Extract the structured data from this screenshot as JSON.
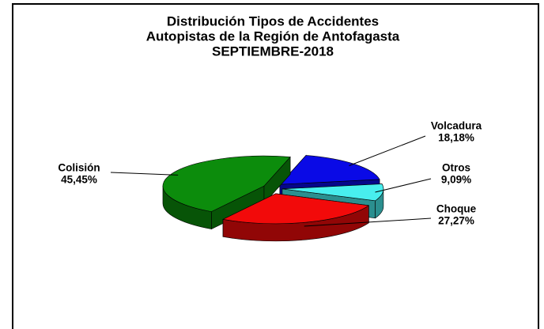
{
  "chart_data": {
    "type": "pie",
    "title_lines": [
      "Distribución Tipos de Accidentes",
      "Autopistas de la Región de Antofagasta",
      "SEPTIEMBRE-2018"
    ],
    "categories": [
      "Volcadura",
      "Otros",
      "Choque",
      "Colisión"
    ],
    "values": [
      18.18,
      9.09,
      27.27,
      45.45
    ],
    "value_labels": [
      "18,18%",
      "9,09%",
      "27,27%",
      "45,45%"
    ],
    "colors": [
      "#0a0ae6",
      "#48eeee",
      "#f20a0a",
      "#0c8c0c"
    ],
    "start_angle": -75,
    "three_d": true,
    "exploded": true
  }
}
